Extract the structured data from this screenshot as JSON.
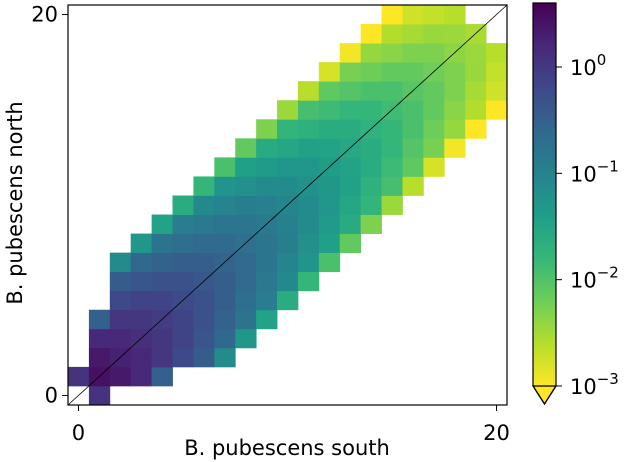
{
  "chart_data": {
    "type": "heatmap",
    "title": "",
    "xlabel": "B. pubescens south",
    "ylabel": "B. pubescens north",
    "xlim": [
      0,
      20
    ],
    "ylim": [
      0,
      20
    ],
    "x_ticks": [
      "0",
      "20"
    ],
    "y_ticks": [
      "0",
      "20"
    ],
    "color_scale": "log",
    "color_range": [
      0.001,
      4
    ],
    "colormap": "viridis_reversed",
    "colorbar": {
      "position": "right",
      "ticks": [
        {
          "value": 1,
          "base": "10",
          "exp": "0"
        },
        {
          "value": 0.1,
          "base": "10",
          "exp": "−1"
        },
        {
          "value": 0.01,
          "base": "10",
          "exp": "−2"
        },
        {
          "value": 0.001,
          "base": "10",
          "exp": "−3"
        }
      ],
      "extend": "min"
    },
    "diagonal_line": true,
    "grid": false,
    "cell_model": {
      "description_free": true,
      "peak_value": 4.0,
      "diagonal_decay_per_step": 0.09,
      "band_halfwidth": 5.5,
      "band_falloff": 0.35,
      "min_value": 0.001
    }
  },
  "colors": {
    "viridis_stops": [
      "#fde725",
      "#b5de2b",
      "#6ece58",
      "#35b779",
      "#1f9e89",
      "#26828e",
      "#31688e",
      "#3e4989",
      "#482878",
      "#440154"
    ]
  }
}
